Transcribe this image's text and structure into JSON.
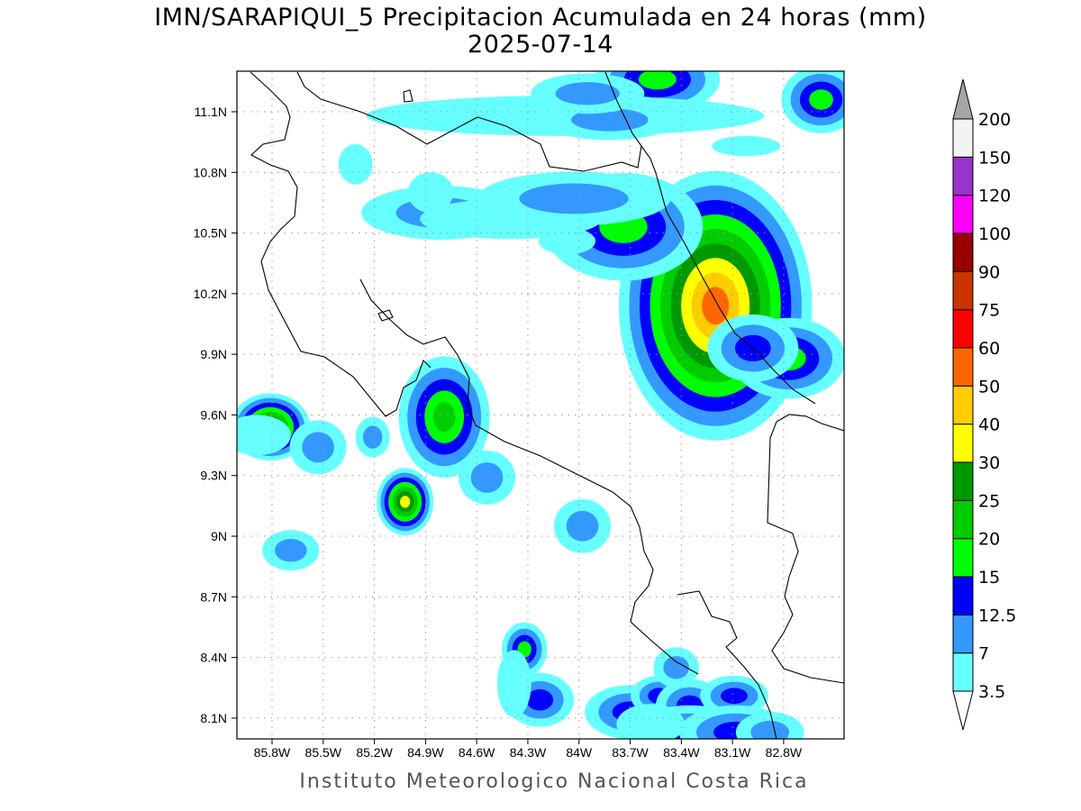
{
  "title_line1": "IMN/SARAPIQUI_5 Precipitacion Acumulada en 24 horas (mm)",
  "title_line2": "2025-07-14",
  "credit": "Instituto Meteorologico Nacional Costa Rica",
  "chart_data": {
    "type": "map",
    "variable": "24-hour accumulated precipitation (mm)",
    "lon_range_W": [
      86.0,
      82.45
    ],
    "lat_range_N": [
      8.0,
      11.3
    ],
    "grid": true,
    "x_ticks": [
      {
        "value": 85.8,
        "label": "85.8W"
      },
      {
        "value": 85.5,
        "label": "85.5W"
      },
      {
        "value": 85.2,
        "label": "85.2W"
      },
      {
        "value": 84.9,
        "label": "84.9W"
      },
      {
        "value": 84.6,
        "label": "84.6W"
      },
      {
        "value": 84.3,
        "label": "84.3W"
      },
      {
        "value": 84.0,
        "label": "84W"
      },
      {
        "value": 83.7,
        "label": "83.7W"
      },
      {
        "value": 83.4,
        "label": "83.4W"
      },
      {
        "value": 83.1,
        "label": "83.1W"
      },
      {
        "value": 82.8,
        "label": "82.8W"
      }
    ],
    "y_ticks": [
      {
        "value": 11.1,
        "label": "11.1N"
      },
      {
        "value": 10.8,
        "label": "10.8N"
      },
      {
        "value": 10.5,
        "label": "10.5N"
      },
      {
        "value": 10.2,
        "label": "10.2N"
      },
      {
        "value": 9.9,
        "label": "9.9N"
      },
      {
        "value": 9.6,
        "label": "9.6N"
      },
      {
        "value": 9.3,
        "label": "9.3N"
      },
      {
        "value": 9.0,
        "label": "9N"
      },
      {
        "value": 8.7,
        "label": "8.7N"
      },
      {
        "value": 8.4,
        "label": "8.4N"
      },
      {
        "value": 8.1,
        "label": "8.1N"
      }
    ],
    "colorbar": {
      "labels": [
        "3.5",
        "7",
        "12.5",
        "15",
        "20",
        "25",
        "30",
        "40",
        "50",
        "60",
        "75",
        "90",
        "100",
        "120",
        "150",
        "200"
      ],
      "colors": [
        "#66ffff",
        "#3399ff",
        "#0000ff",
        "#00ff00",
        "#00cc00",
        "#009900",
        "#ffff00",
        "#ffcc00",
        "#ff6600",
        "#ff0000",
        "#cc3300",
        "#990000",
        "#ff00ff",
        "#9933cc",
        "#f2f2f2"
      ],
      "over_color": "#a6a6a6",
      "under_color": "#ffffff"
    },
    "precip_cells": [
      {
        "lon": 83.2,
        "lat": 10.14,
        "r_lon": 0.17,
        "r_lat": 0.2,
        "level": 8
      },
      {
        "lon": 82.77,
        "lat": 9.88,
        "r_lon": 0.1,
        "r_lat": 0.06,
        "level": 3
      },
      {
        "lon": 82.98,
        "lat": 9.93,
        "r_lon": 0.08,
        "r_lat": 0.05,
        "level": 2
      },
      {
        "lon": 83.74,
        "lat": 10.53,
        "r_lon": 0.14,
        "r_lat": 0.08,
        "level": 3
      },
      {
        "lon": 83.54,
        "lat": 11.26,
        "r_lon": 0.11,
        "r_lat": 0.05,
        "level": 3
      },
      {
        "lon": 82.58,
        "lat": 11.16,
        "r_lon": 0.07,
        "r_lat": 0.05,
        "level": 3
      },
      {
        "lon": 85.81,
        "lat": 9.54,
        "r_lon": 0.07,
        "r_lat": 0.05,
        "level": 6
      },
      {
        "lon": 84.79,
        "lat": 9.59,
        "r_lon": 0.08,
        "r_lat": 0.09,
        "level": 4
      },
      {
        "lon": 85.02,
        "lat": 9.17,
        "r_lon": 0.05,
        "r_lat": 0.05,
        "level": 6
      },
      {
        "lon": 84.32,
        "lat": 8.44,
        "r_lon": 0.04,
        "r_lat": 0.04,
        "level": 3
      },
      {
        "lon": 84.81,
        "lat": 10.6,
        "r_lon": 0.14,
        "r_lat": 0.04,
        "level": 1
      },
      {
        "lon": 84.4,
        "lat": 10.57,
        "r_lon": 0.16,
        "r_lat": 0.03,
        "level": 0
      },
      {
        "lon": 84.03,
        "lat": 10.67,
        "r_lon": 0.17,
        "r_lat": 0.04,
        "level": 1
      },
      {
        "lon": 84.08,
        "lat": 11.08,
        "r_lon": 0.35,
        "r_lat": 0.03,
        "level": 0
      },
      {
        "lon": 83.82,
        "lat": 11.06,
        "r_lon": 0.12,
        "r_lat": 0.03,
        "level": 1
      },
      {
        "lon": 83.95,
        "lat": 11.19,
        "r_lon": 0.1,
        "r_lat": 0.03,
        "level": 1
      },
      {
        "lon": 83.02,
        "lat": 10.93,
        "r_lon": 0.06,
        "r_lat": 0.015,
        "level": 0
      },
      {
        "lon": 85.53,
        "lat": 9.44,
        "r_lon": 0.05,
        "r_lat": 0.04,
        "level": 1
      },
      {
        "lon": 85.21,
        "lat": 9.49,
        "r_lon": 0.03,
        "r_lat": 0.03,
        "level": 1
      },
      {
        "lon": 84.54,
        "lat": 9.29,
        "r_lon": 0.05,
        "r_lat": 0.04,
        "level": 1
      },
      {
        "lon": 85.69,
        "lat": 8.93,
        "r_lon": 0.05,
        "r_lat": 0.03,
        "level": 1
      },
      {
        "lon": 83.98,
        "lat": 9.05,
        "r_lon": 0.05,
        "r_lat": 0.04,
        "level": 1
      },
      {
        "lon": 84.23,
        "lat": 8.19,
        "r_lon": 0.06,
        "r_lat": 0.04,
        "level": 2
      },
      {
        "lon": 83.7,
        "lat": 8.13,
        "r_lon": 0.08,
        "r_lat": 0.04,
        "level": 2
      },
      {
        "lon": 83.53,
        "lat": 8.21,
        "r_lon": 0.05,
        "r_lat": 0.03,
        "level": 2
      },
      {
        "lon": 83.35,
        "lat": 8.16,
        "r_lon": 0.06,
        "r_lat": 0.04,
        "level": 2
      },
      {
        "lon": 83.09,
        "lat": 8.21,
        "r_lon": 0.06,
        "r_lat": 0.03,
        "level": 2
      },
      {
        "lon": 83.35,
        "lat": 8.03,
        "r_lon": 0.1,
        "r_lat": 0.04,
        "level": 2
      },
      {
        "lon": 83.08,
        "lat": 8.03,
        "r_lon": 0.1,
        "r_lat": 0.04,
        "level": 2
      },
      {
        "lon": 82.88,
        "lat": 8.03,
        "r_lon": 0.06,
        "r_lat": 0.03,
        "level": 1
      },
      {
        "lon": 83.43,
        "lat": 8.35,
        "r_lon": 0.04,
        "r_lat": 0.03,
        "level": 1
      },
      {
        "lon": 83.58,
        "lat": 8.07,
        "r_lon": 0.06,
        "r_lat": 0.03,
        "level": 0
      },
      {
        "lon": 84.07,
        "lat": 10.46,
        "r_lon": 0.05,
        "r_lat": 0.02,
        "level": 0
      },
      {
        "lon": 85.31,
        "lat": 10.84,
        "r_lon": 0.03,
        "r_lat": 0.03,
        "level": 0
      },
      {
        "lon": 84.87,
        "lat": 10.7,
        "r_lon": 0.04,
        "r_lat": 0.03,
        "level": 0
      },
      {
        "lon": 85.89,
        "lat": 9.5,
        "r_lon": 0.06,
        "r_lat": 0.03,
        "level": 0
      },
      {
        "lon": 84.38,
        "lat": 8.27,
        "r_lon": 0.03,
        "r_lat": 0.05,
        "level": 0
      }
    ]
  }
}
